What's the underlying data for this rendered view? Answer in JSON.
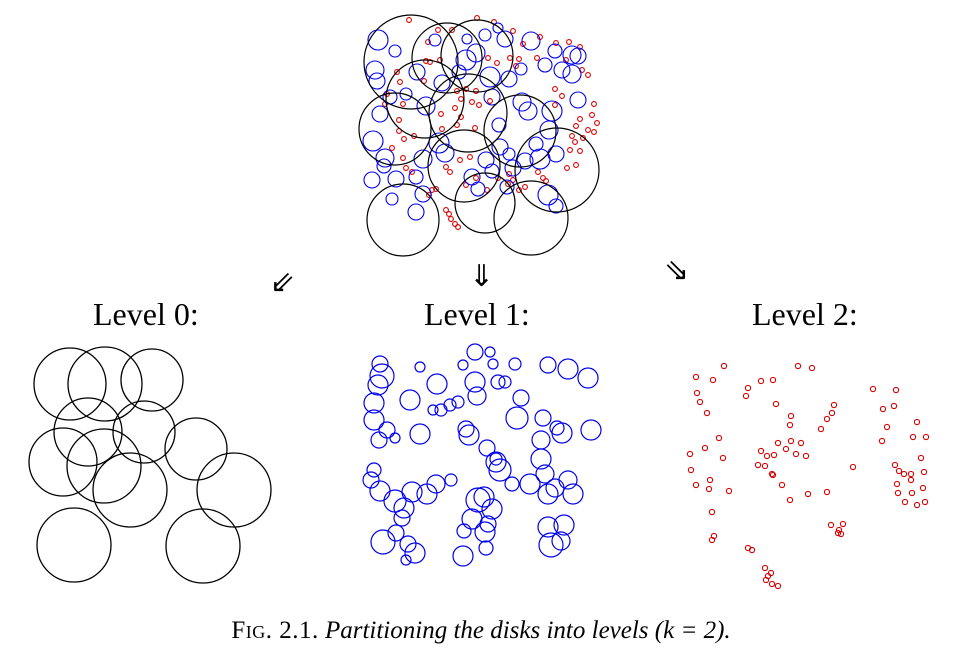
{
  "labels": {
    "level0": "Level 0:",
    "level1": "Level 1:",
    "level2": "Level 2:"
  },
  "arrows": {
    "left": "⇙",
    "middle": "⇓",
    "right": "⇘"
  },
  "caption": {
    "fig_label": "Fig. 2.1.",
    "text": "Partitioning the disks into levels (k = 2)."
  },
  "colors": {
    "level0": "#000000",
    "level1": "#0000ee",
    "level2": "#dd0000"
  }
}
